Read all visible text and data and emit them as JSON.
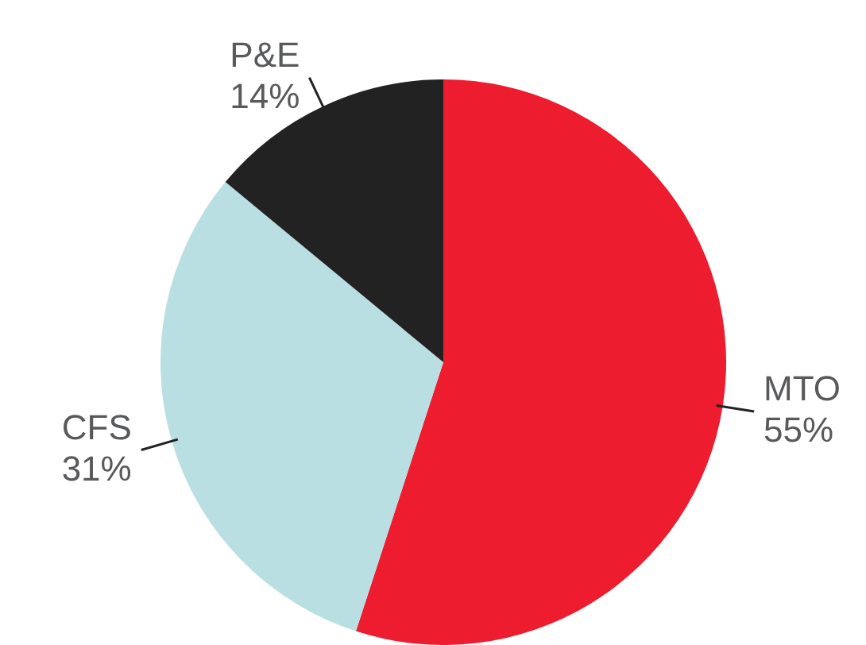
{
  "chart_data": {
    "type": "pie",
    "categories": [
      "MTO",
      "CFS",
      "P&E"
    ],
    "values": [
      55,
      31,
      14
    ],
    "colors": [
      "#ed1c2e",
      "#badfe2",
      "#222222"
    ],
    "value_labels": [
      "55%",
      "31%",
      "14%"
    ],
    "legend": false
  }
}
